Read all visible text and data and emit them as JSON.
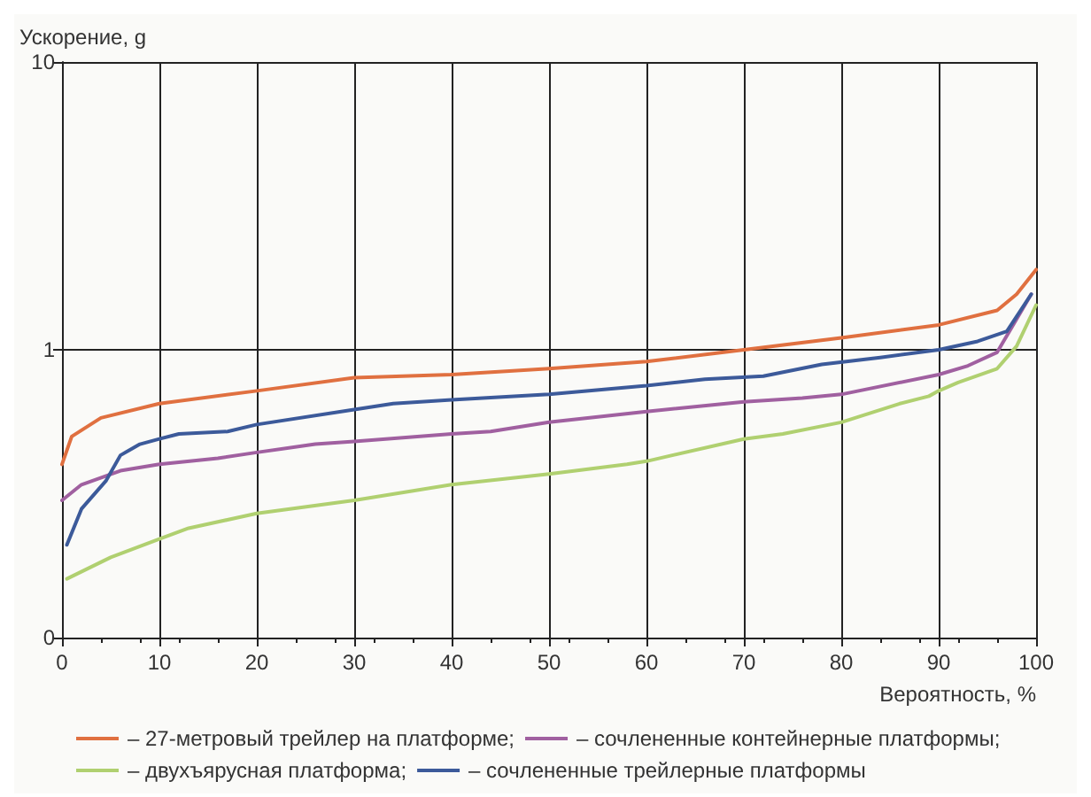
{
  "chart_data": {
    "type": "line",
    "xlabel": "Вероятность, %",
    "ylabel": "Ускорение, g",
    "xlim": [
      0,
      100
    ],
    "xticks": [
      0,
      10,
      20,
      30,
      40,
      50,
      60,
      70,
      80,
      90,
      100
    ],
    "ylim": [
      0.1,
      10
    ],
    "yticks": [
      {
        "value": 0.1,
        "label": "0"
      },
      1,
      10
    ],
    "log": "y",
    "grid": true,
    "legend": "bottom",
    "marker": "none",
    "line_style": "solid",
    "series": [
      {
        "name": "– 27-метровый трейлер на платформе;",
        "color": "#e07040",
        "x": [
          0,
          1,
          4,
          10,
          20,
          30,
          40,
          50,
          60,
          70,
          80,
          90,
          96,
          98,
          100
        ],
        "values": [
          0.4,
          0.5,
          0.58,
          0.65,
          0.72,
          0.8,
          0.82,
          0.86,
          0.91,
          1.0,
          1.1,
          1.22,
          1.37,
          1.56,
          1.9
        ]
      },
      {
        "name": "– сочлененные контейнерные платформы;",
        "color": "#a060a0",
        "x": [
          0,
          2,
          6,
          10,
          16,
          20,
          26,
          30,
          40,
          44,
          50,
          60,
          70,
          76,
          80,
          90,
          93,
          96,
          99.5
        ],
        "values": [
          0.3,
          0.34,
          0.38,
          0.4,
          0.42,
          0.44,
          0.47,
          0.48,
          0.51,
          0.52,
          0.56,
          0.61,
          0.66,
          0.68,
          0.7,
          0.82,
          0.88,
          0.98,
          1.56
        ]
      },
      {
        "name": "– двухъярусная платформа;",
        "color": "#b0d070",
        "x": [
          0.5,
          5,
          10,
          13,
          20,
          30,
          40,
          50,
          58,
          60,
          70,
          74,
          80,
          86,
          89,
          90,
          92,
          96,
          98,
          100
        ],
        "values": [
          0.16,
          0.19,
          0.22,
          0.24,
          0.27,
          0.3,
          0.34,
          0.37,
          0.4,
          0.41,
          0.49,
          0.51,
          0.56,
          0.65,
          0.69,
          0.72,
          0.77,
          0.86,
          1.03,
          1.43
        ]
      },
      {
        "name": "– сочлененные трейлерные платформы",
        "color": "#3c5a9a",
        "x": [
          0.5,
          2,
          4.5,
          6,
          8,
          10,
          12,
          17,
          20,
          30,
          34,
          40,
          50,
          60,
          66,
          72,
          78,
          84,
          90,
          94,
          97,
          99.5
        ],
        "values": [
          0.21,
          0.28,
          0.35,
          0.43,
          0.47,
          0.49,
          0.51,
          0.52,
          0.55,
          0.62,
          0.65,
          0.67,
          0.7,
          0.75,
          0.79,
          0.81,
          0.89,
          0.94,
          1.0,
          1.07,
          1.16,
          1.56
        ]
      }
    ]
  }
}
